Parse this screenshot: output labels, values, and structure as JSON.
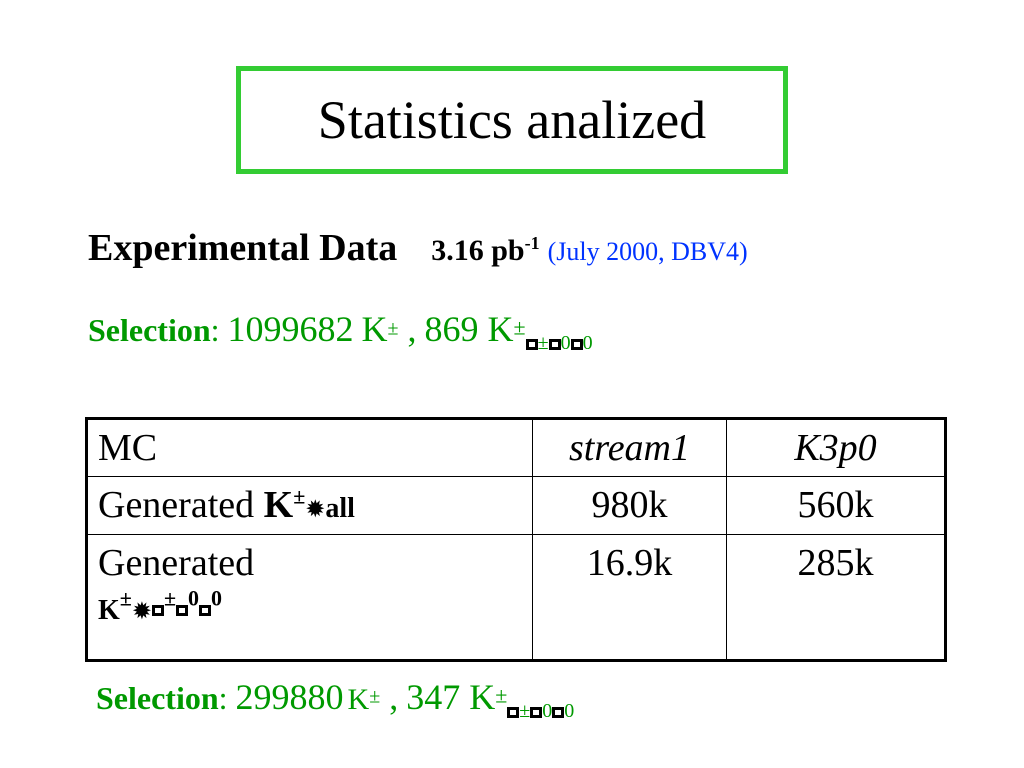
{
  "title": "Statistics analized",
  "experimental": {
    "label": "Experimental Data",
    "lumi": "3.16 pb",
    "lumi_exp": "-1",
    "note": "(July 2000, DBV4)"
  },
  "selection_top": {
    "label": "Selection",
    "colon": ":",
    "value1": "1099682",
    "k": "K",
    "pm": "±",
    "sep": " ,",
    "value2": "869 K",
    "sub_pm": "±",
    "sub_zero1": "0",
    "sub_zero2": "0"
  },
  "table": {
    "header": [
      "MC",
      "stream1",
      "K3p0"
    ],
    "rows": [
      {
        "label": "Generated",
        "label_bold": "K",
        "label_pm": "±",
        "label_tail": "all",
        "values": [
          "980k",
          "560k"
        ]
      },
      {
        "label": "Generated",
        "label_bold": "K",
        "label_pm": "±",
        "label_sub_pm": "±",
        "label_zero1": "0",
        "label_zero2": "0",
        "values": [
          "16.9k",
          "285k"
        ]
      }
    ]
  },
  "selection_bottom": {
    "label": "Selection",
    "colon": ":",
    "value1": "299880",
    "k": "K",
    "pm": "±",
    "sep": " ,",
    "value2": "347 K",
    "sub_pm": "±",
    "sub_zero1": "0",
    "sub_zero2": "0"
  },
  "colors": {
    "title_border": "#33cc33",
    "selection": "#009900",
    "note": "#0033ff"
  }
}
